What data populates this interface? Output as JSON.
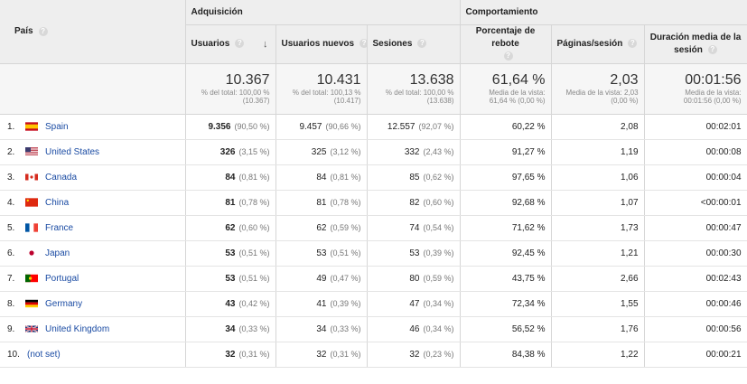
{
  "header": {
    "pais": "País",
    "adquisicion": "Adquisición",
    "comportamiento": "Comportamiento",
    "usuarios": "Usuarios",
    "usuarios_nuevos": "Usuarios nuevos",
    "sesiones": "Sesiones",
    "porcentaje_rebote": "Porcentaje de rebote",
    "paginas_sesion": "Páginas/sesión",
    "duracion_media": "Duración media de la sesión",
    "help_glyph": "?",
    "sort_glyph": "↓"
  },
  "totals": {
    "usuarios": {
      "value": "10.367",
      "l1": "% del total: 100,00 %",
      "l2": "(10.367)"
    },
    "usuarios_nuevos": {
      "value": "10.431",
      "l1": "% del total: 100,13 %",
      "l2": "(10.417)"
    },
    "sesiones": {
      "value": "13.638",
      "l1": "% del total: 100,00 %",
      "l2": "(13.638)"
    },
    "rebote": {
      "value": "61,64 %",
      "l1": "Media de la vista:",
      "l2": "61,64 % (0,00 %)"
    },
    "paginas": {
      "value": "2,03",
      "l1": "Media de la vista: 2,03",
      "l2": "(0,00 %)"
    },
    "duracion": {
      "value": "00:01:56",
      "l1": "Media de la vista:",
      "l2": "00:01:56 (0,00 %)"
    }
  },
  "rows": [
    {
      "idx": "1.",
      "flag": "es",
      "country": "Spain",
      "usuarios": "9.356",
      "usuarios_pct": "(90,50 %)",
      "nuevos": "9.457",
      "nuevos_pct": "(90,66 %)",
      "sesiones": "12.557",
      "sesiones_pct": "(92,07 %)",
      "rebote": "60,22 %",
      "paginas": "2,08",
      "duracion": "00:02:01"
    },
    {
      "idx": "2.",
      "flag": "us",
      "country": "United States",
      "usuarios": "326",
      "usuarios_pct": "(3,15 %)",
      "nuevos": "325",
      "nuevos_pct": "(3,12 %)",
      "sesiones": "332",
      "sesiones_pct": "(2,43 %)",
      "rebote": "91,27 %",
      "paginas": "1,19",
      "duracion": "00:00:08"
    },
    {
      "idx": "3.",
      "flag": "ca",
      "country": "Canada",
      "usuarios": "84",
      "usuarios_pct": "(0,81 %)",
      "nuevos": "84",
      "nuevos_pct": "(0,81 %)",
      "sesiones": "85",
      "sesiones_pct": "(0,62 %)",
      "rebote": "97,65 %",
      "paginas": "1,06",
      "duracion": "00:00:04"
    },
    {
      "idx": "4.",
      "flag": "cn",
      "country": "China",
      "usuarios": "81",
      "usuarios_pct": "(0,78 %)",
      "nuevos": "81",
      "nuevos_pct": "(0,78 %)",
      "sesiones": "82",
      "sesiones_pct": "(0,60 %)",
      "rebote": "92,68 %",
      "paginas": "1,07",
      "duracion": "<00:00:01"
    },
    {
      "idx": "5.",
      "flag": "fr",
      "country": "France",
      "usuarios": "62",
      "usuarios_pct": "(0,60 %)",
      "nuevos": "62",
      "nuevos_pct": "(0,59 %)",
      "sesiones": "74",
      "sesiones_pct": "(0,54 %)",
      "rebote": "71,62 %",
      "paginas": "1,73",
      "duracion": "00:00:47"
    },
    {
      "idx": "6.",
      "flag": "jp",
      "country": "Japan",
      "usuarios": "53",
      "usuarios_pct": "(0,51 %)",
      "nuevos": "53",
      "nuevos_pct": "(0,51 %)",
      "sesiones": "53",
      "sesiones_pct": "(0,39 %)",
      "rebote": "92,45 %",
      "paginas": "1,21",
      "duracion": "00:00:30"
    },
    {
      "idx": "7.",
      "flag": "pt",
      "country": "Portugal",
      "usuarios": "53",
      "usuarios_pct": "(0,51 %)",
      "nuevos": "49",
      "nuevos_pct": "(0,47 %)",
      "sesiones": "80",
      "sesiones_pct": "(0,59 %)",
      "rebote": "43,75 %",
      "paginas": "2,66",
      "duracion": "00:02:43"
    },
    {
      "idx": "8.",
      "flag": "de",
      "country": "Germany",
      "usuarios": "43",
      "usuarios_pct": "(0,42 %)",
      "nuevos": "41",
      "nuevos_pct": "(0,39 %)",
      "sesiones": "47",
      "sesiones_pct": "(0,34 %)",
      "rebote": "72,34 %",
      "paginas": "1,55",
      "duracion": "00:00:46"
    },
    {
      "idx": "9.",
      "flag": "gb",
      "country": "United Kingdom",
      "usuarios": "34",
      "usuarios_pct": "(0,33 %)",
      "nuevos": "34",
      "nuevos_pct": "(0,33 %)",
      "sesiones": "46",
      "sesiones_pct": "(0,34 %)",
      "rebote": "56,52 %",
      "paginas": "1,76",
      "duracion": "00:00:56"
    },
    {
      "idx": "10.",
      "flag": "",
      "country": "(not set)",
      "usuarios": "32",
      "usuarios_pct": "(0,31 %)",
      "nuevos": "32",
      "nuevos_pct": "(0,31 %)",
      "sesiones": "32",
      "sesiones_pct": "(0,23 %)",
      "rebote": "84,38 %",
      "paginas": "1,22",
      "duracion": "00:00:21"
    }
  ],
  "colors": {
    "link": "#1a4ba3",
    "header_bg": "#eeeeee",
    "totals_bg": "#f6f6f6",
    "border": "#d6d6d6"
  }
}
